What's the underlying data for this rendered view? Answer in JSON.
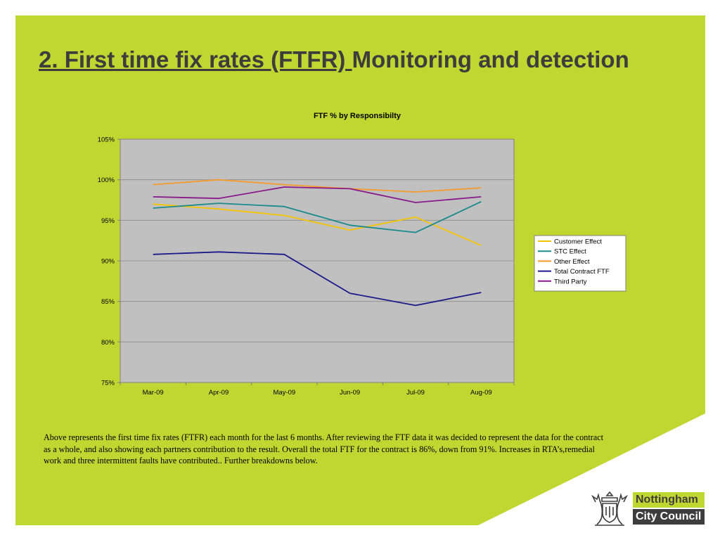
{
  "slide": {
    "title_underlined": "2. First time fix rates (FTFR) ",
    "title_rest": "Monitoring and detection",
    "body_text": "Above represents the first time fix rates (FTFR) each month for the last 6 months. After reviewing the FTF data it was decided to represent the data for the contract as a whole, and also showing each partners contribution to the result. Overall the total FTF for the contract is 86%, down from 91%. Increases in RTA’s,remedial work and three intermittent faults have contributed.. Further breakdowns below."
  },
  "logo": {
    "line1": "Nottingham",
    "line2": "City Council",
    "crest_icon": "coat-of-arms-icon"
  },
  "colors": {
    "slide_background": "#bfd730",
    "plot_background": "#c0c0c0",
    "title_text": "#3d3d3d"
  },
  "chart_data": {
    "type": "line",
    "title": "FTF % by Responsibilty",
    "categories": [
      "Mar-09",
      "Apr-09",
      "May-09",
      "Jun-09",
      "Jul-09",
      "Aug-09"
    ],
    "ylim": [
      75,
      105
    ],
    "yticks": [
      "75%",
      "80%",
      "85%",
      "90%",
      "95%",
      "100%",
      "105%"
    ],
    "ytick_values": [
      75,
      80,
      85,
      90,
      95,
      100,
      105
    ],
    "grid": true,
    "legend_position": "right",
    "series": [
      {
        "name": "Customer Effect",
        "color": "#f5c400",
        "values": [
          97.0,
          96.4,
          95.6,
          93.8,
          95.4,
          91.9
        ]
      },
      {
        "name": "STC Effect",
        "color": "#1a8a8a",
        "values": [
          96.5,
          97.1,
          96.7,
          94.4,
          93.5,
          97.3
        ]
      },
      {
        "name": "Other Effect",
        "color": "#f59b2b",
        "values": [
          99.4,
          100.0,
          99.4,
          98.9,
          98.5,
          99.0
        ]
      },
      {
        "name": "Total Contract FTF",
        "color": "#1a1a8a",
        "values": [
          90.8,
          91.1,
          90.8,
          86.0,
          84.5,
          86.1
        ]
      },
      {
        "name": "Third Party",
        "color": "#8a1a8a",
        "values": [
          97.9,
          97.7,
          99.1,
          98.9,
          97.2,
          97.9
        ]
      }
    ]
  }
}
